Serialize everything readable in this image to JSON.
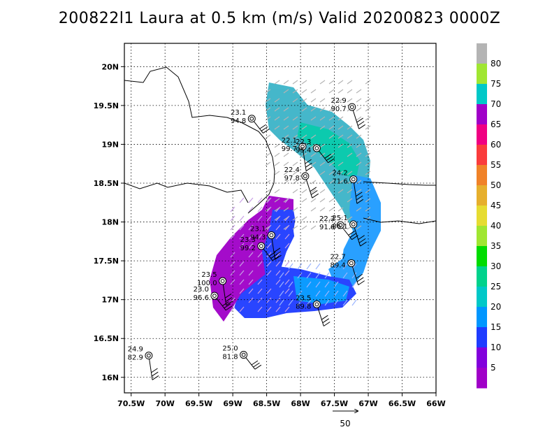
{
  "title": "200822l1 Laura at 0.5 km (m/s) Valid 20200823 0000Z",
  "map": {
    "lon_range": [
      -70.6,
      -66.0
    ],
    "lat_range": [
      15.8,
      20.3
    ],
    "x_ticks": [
      -70.5,
      -70.0,
      -69.5,
      -69.0,
      -68.5,
      -68.0,
      -67.5,
      -67.0,
      -66.5,
      -66.0
    ],
    "x_tick_labels": [
      "70.5W",
      "70W",
      "69.5W",
      "69W",
      "68.5W",
      "68W",
      "67.5W",
      "67W",
      "66.5W",
      "66W"
    ],
    "y_ticks": [
      16.0,
      16.5,
      17.0,
      17.5,
      18.0,
      18.5,
      19.0,
      19.5,
      20.0
    ],
    "y_tick_labels": [
      "16N",
      "16.5N",
      "17N",
      "17.5N",
      "18N",
      "18.5N",
      "19N",
      "19.5N",
      "20N"
    ],
    "grid": true
  },
  "colorbar": {
    "labels": [
      "5",
      "10",
      "15",
      "20",
      "25",
      "30",
      "35",
      "40",
      "45",
      "50",
      "55",
      "60",
      "65",
      "70",
      "75",
      "80"
    ],
    "colors": [
      "#a000c8",
      "#8200dc",
      "#1e3cff",
      "#0096ff",
      "#00c8c8",
      "#00d28c",
      "#00dc00",
      "#a0e632",
      "#e6dc32",
      "#e6af2d",
      "#f08228",
      "#fa3c3c",
      "#f00082",
      "#a000c8",
      "#00c8c8",
      "#a0e632",
      "#b4b4b4"
    ]
  },
  "vector_reference": {
    "label": "50"
  },
  "stations": [
    {
      "lon": -68.72,
      "lat": 19.33,
      "temp": "23.1",
      "pres": "94.8"
    },
    {
      "lon": -67.24,
      "lat": 19.48,
      "temp": "22.9",
      "pres": "90.7"
    },
    {
      "lon": -67.97,
      "lat": 18.97,
      "temp": "22.1",
      "pres": "99.7"
    },
    {
      "lon": -67.76,
      "lat": 18.95,
      "temp": "22.3",
      "pres": "95.4"
    },
    {
      "lon": -67.93,
      "lat": 18.59,
      "temp": "22.4",
      "pres": "97.8"
    },
    {
      "lon": -67.22,
      "lat": 18.55,
      "temp": "24.2",
      "pres": "71.6"
    },
    {
      "lon": -67.41,
      "lat": 17.96,
      "temp": "22.2",
      "pres": "91.6"
    },
    {
      "lon": -67.22,
      "lat": 17.97,
      "temp": "25.1",
      "pres": "86.1"
    },
    {
      "lon": -68.43,
      "lat": 17.83,
      "temp": "23.1",
      "pres": "94.3"
    },
    {
      "lon": -68.58,
      "lat": 17.69,
      "temp": "23.3",
      "pres": "99.2"
    },
    {
      "lon": -67.25,
      "lat": 17.47,
      "temp": "22.7",
      "pres": "89.4"
    },
    {
      "lon": -69.15,
      "lat": 17.24,
      "temp": "23.5",
      "pres": "100.0"
    },
    {
      "lon": -69.27,
      "lat": 17.05,
      "temp": "23.0",
      "pres": "96.6"
    },
    {
      "lon": -67.76,
      "lat": 16.94,
      "temp": "23.5",
      "pres": "89.8"
    },
    {
      "lon": -70.24,
      "lat": 16.28,
      "temp": "24.9",
      "pres": "82.9"
    },
    {
      "lon": -68.84,
      "lat": 16.29,
      "temp": "25.0",
      "pres": "81.8"
    }
  ]
}
